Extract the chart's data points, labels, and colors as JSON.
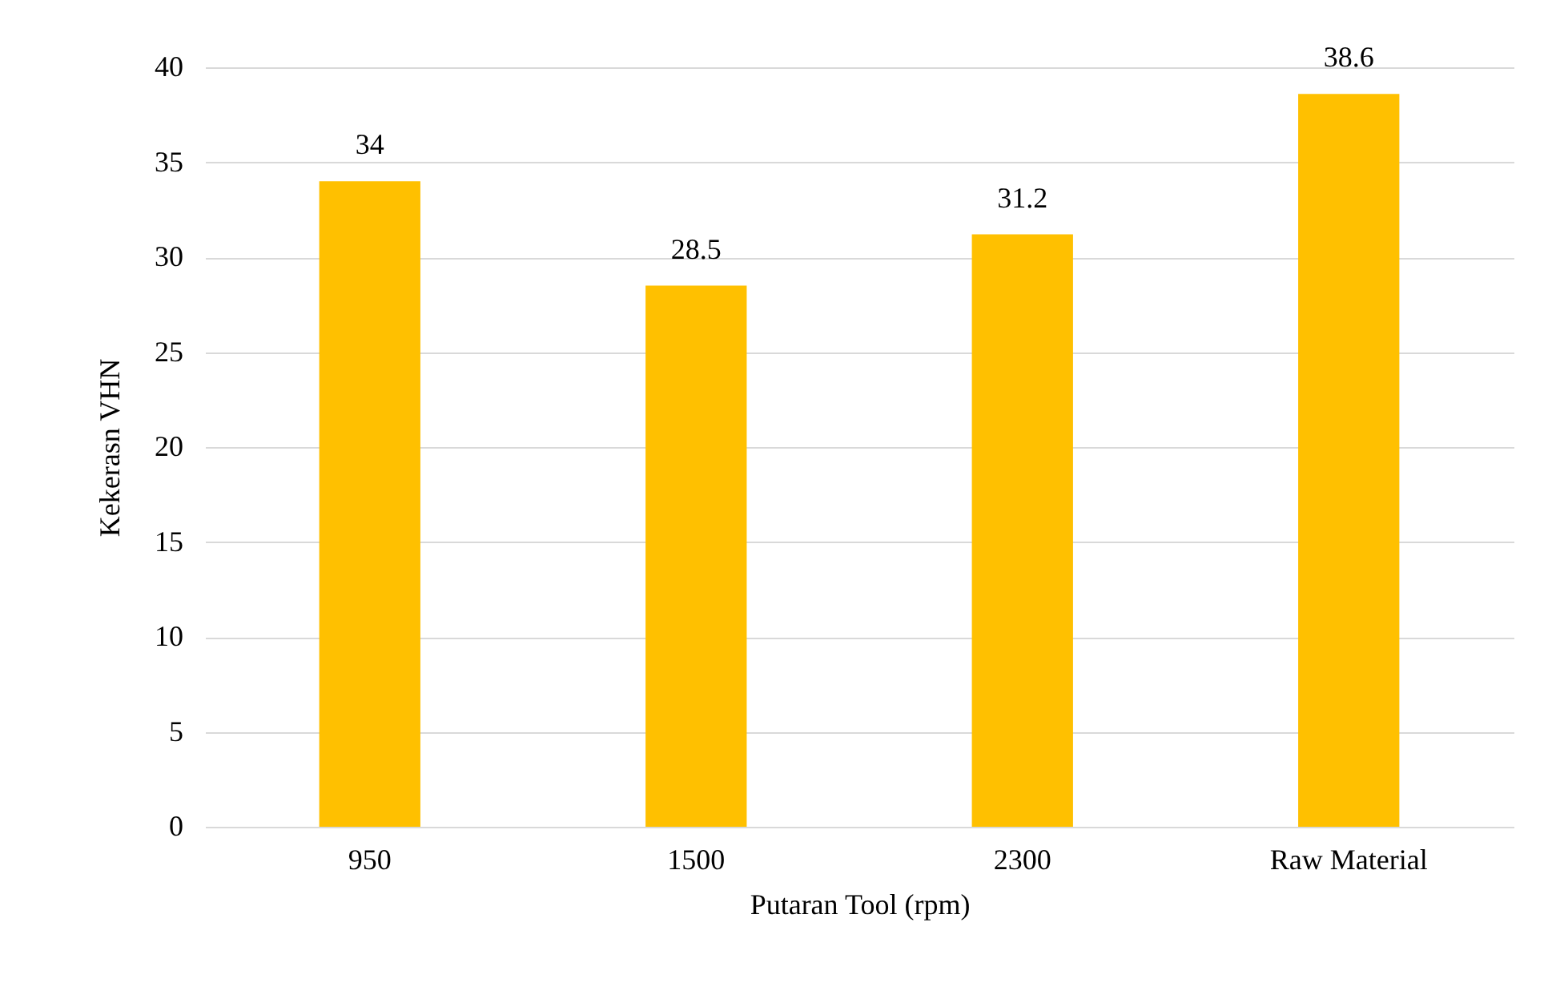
{
  "chart_data": {
    "type": "bar",
    "xlabel": "Putaran Tool (rpm)",
    "ylabel": "Kekerasn VHN",
    "categories": [
      "950",
      "1500",
      "2300",
      "Raw Material"
    ],
    "values": [
      34,
      28.5,
      31.2,
      38.6
    ],
    "color": "#ffc000",
    "data_labels": true,
    "ylim": [
      0,
      40
    ],
    "yticks": [
      0,
      5,
      10,
      15,
      20,
      25,
      30,
      35,
      40
    ],
    "grid": "y"
  }
}
